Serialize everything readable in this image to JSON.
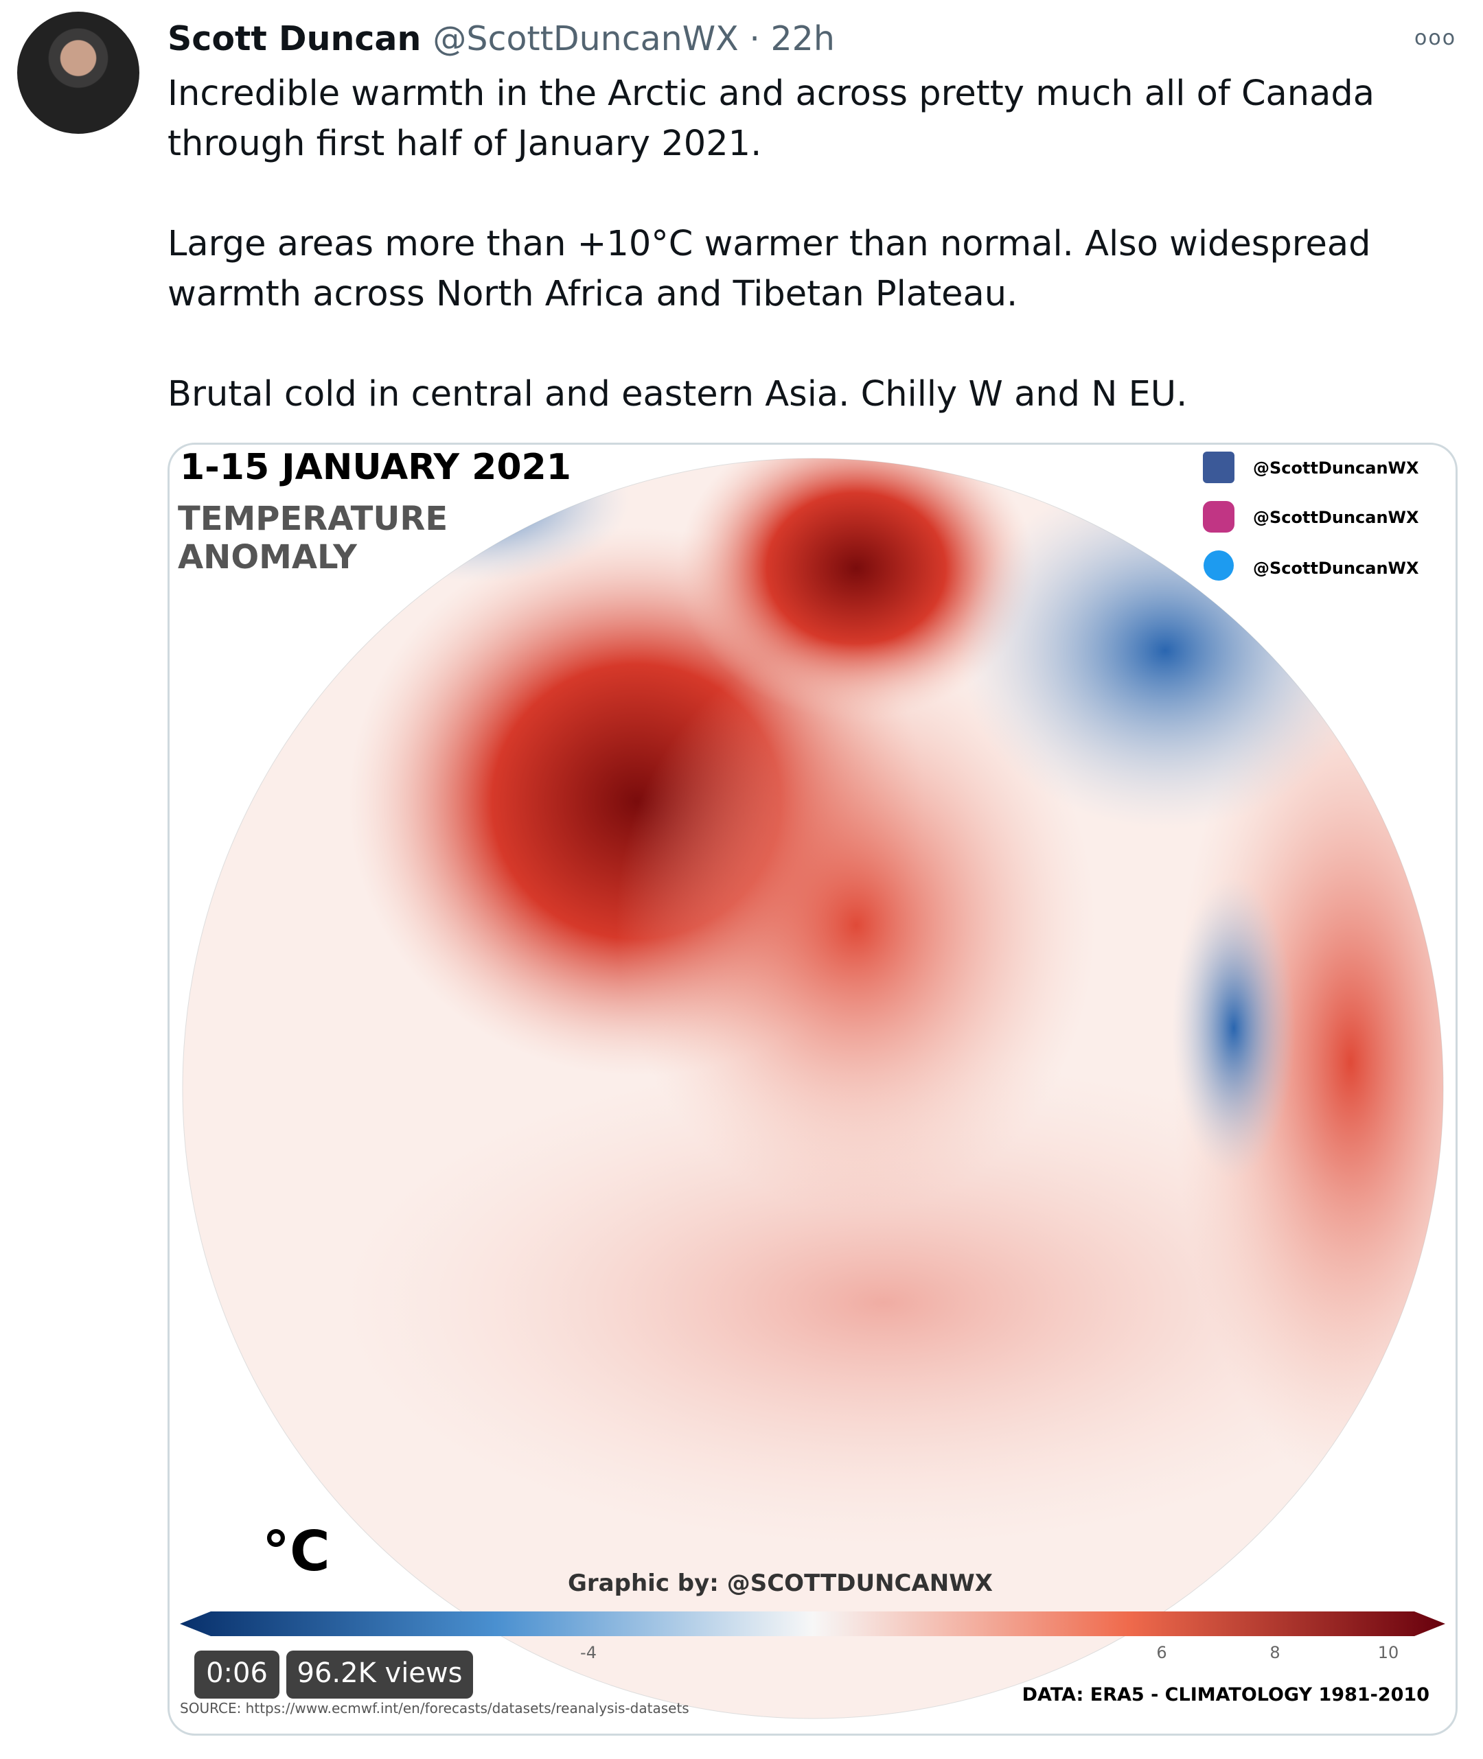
{
  "tweet": {
    "author": "Scott Duncan",
    "handle": "@ScottDuncanWX",
    "time": "· 22h",
    "paragraphs": [
      "Incredible warmth in the Arctic and across pretty much all of Canada through first half of January 2021.",
      "Large areas more than +10°C warmer than normal. Also widespread warmth across North Africa and Tibetan Plateau.",
      "Brutal cold in central and eastern Asia. Chilly W and N EU."
    ]
  },
  "media": {
    "title": "1-15 JANUARY 2021",
    "subtitle": "TEMPERATURE ANOMALY",
    "socials": [
      "@ScottDuncanWX",
      "@ScottDuncanWX",
      "@ScottDuncanWX"
    ],
    "unit": "°C",
    "credit": "Graphic by: @SCOTTDUNCANWX",
    "colorbar_ticks": [
      "-4",
      "6",
      "8",
      "10"
    ],
    "data_note": "DATA: ERA5 - CLIMATOLOGY 1981-2010",
    "source": "SOURCE: https://www.ecmwf.int/en/forecasts/datasets/reanalysis-datasets",
    "duration": "0:06",
    "views": "96.2K views"
  }
}
